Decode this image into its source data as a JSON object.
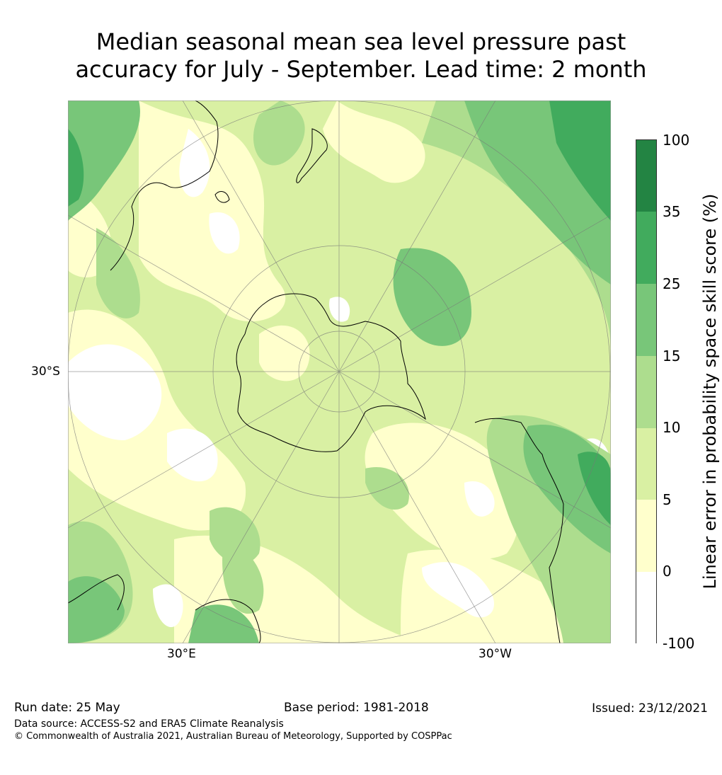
{
  "title_line1": "Median seasonal mean sea level pressure past",
  "title_line2": "accuracy for July - September. Lead time: 2 month",
  "map": {
    "lat_label_left": "30°S",
    "lon_labels": [
      "30°E",
      "30°W"
    ],
    "landmasses": [
      "Antarctica",
      "Australia",
      "New Zealand",
      "South America",
      "Southern Africa"
    ]
  },
  "colorbar": {
    "label": "Linear error in probability space skill score (%)",
    "ticks": [
      "100",
      "35",
      "25",
      "15",
      "10",
      "5",
      "0",
      "-100"
    ],
    "bins": [
      {
        "range": "-100 to 0",
        "color": "#ffffff"
      },
      {
        "range": "0 to 5",
        "color": "#ffffcc"
      },
      {
        "range": "5 to 10",
        "color": "#d9f0a3"
      },
      {
        "range": "10 to 15",
        "color": "#addd8e"
      },
      {
        "range": "15 to 25",
        "color": "#78c679"
      },
      {
        "range": "25 to 35",
        "color": "#41ab5d"
      },
      {
        "range": "35 to 100",
        "color": "#238443"
      }
    ]
  },
  "footer": {
    "run_date": "Run date: 25 May",
    "base_period": "Base period: 1981-2018",
    "issued": "Issued: 23/12/2021",
    "data_source": "Data source: ACCESS-S2 and ERA5 Climate Reanalysis",
    "copyright": "© Commonwealth of Australia 2021, Australian Bureau of Meteorology, Supported by COSPPac"
  }
}
